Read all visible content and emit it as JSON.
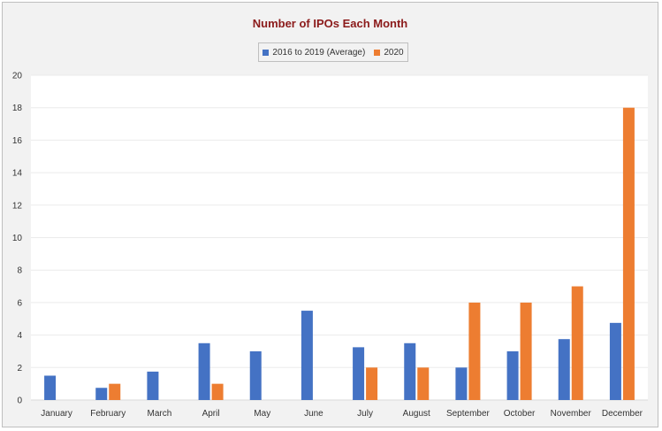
{
  "colors": {
    "series_1": "#4472c4",
    "series_2": "#ed7d31",
    "title": "#8b1a1a",
    "grid": "#ebebeb"
  },
  "chart_data": {
    "type": "bar",
    "title": "Number of IPOs Each Month",
    "xlabel": "",
    "ylabel": "",
    "categories": [
      "January",
      "February",
      "March",
      "April",
      "May",
      "June",
      "July",
      "August",
      "September",
      "October",
      "November",
      "December"
    ],
    "series": [
      {
        "name": "2016 to 2019 (Average)",
        "values": [
          1.5,
          0.75,
          1.75,
          3.5,
          3,
          5.5,
          3.25,
          3.5,
          2,
          3,
          3.75,
          4.75
        ]
      },
      {
        "name": "2020",
        "values": [
          0,
          1,
          0,
          1,
          0,
          0,
          2,
          2,
          6,
          6,
          7,
          18
        ]
      }
    ],
    "ylim": [
      0,
      20
    ],
    "yticks": [
      0,
      2,
      4,
      6,
      8,
      10,
      12,
      14,
      16,
      18,
      20
    ],
    "grid": true,
    "legend_position": "top"
  }
}
